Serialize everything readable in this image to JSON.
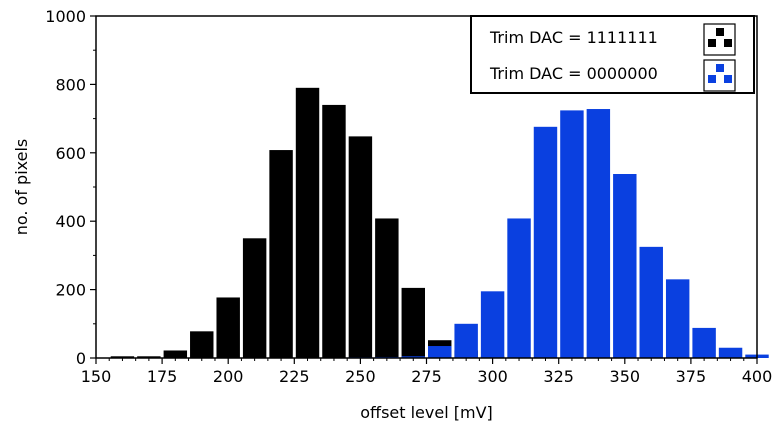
{
  "chart_data": {
    "type": "bar",
    "xlabel": "offset level [mV]",
    "ylabel": "no. of pixels",
    "xlim": [
      150,
      400
    ],
    "ylim": [
      0,
      1000
    ],
    "x_ticks": [
      "150",
      "175",
      "200",
      "225",
      "250",
      "275",
      "300",
      "325",
      "350",
      "375",
      "400"
    ],
    "y_ticks": [
      "0",
      "200",
      "400",
      "600",
      "800",
      "1000"
    ],
    "bin_width": 10,
    "legend_position": "top-right",
    "series": [
      {
        "name": "Trim DAC = 1111111",
        "color": "#000000",
        "bins": [
          160,
          170,
          180,
          190,
          200,
          210,
          220,
          230,
          240,
          250,
          260,
          270,
          280,
          290,
          300,
          310,
          320
        ],
        "values": [
          5,
          5,
          22,
          78,
          177,
          350,
          608,
          790,
          740,
          648,
          408,
          205,
          52,
          22,
          5,
          2,
          2
        ]
      },
      {
        "name": "Trim DAC = 0000000",
        "color": "#0a40e0",
        "bins": [
          250,
          260,
          270,
          280,
          290,
          300,
          310,
          320,
          330,
          340,
          350,
          360,
          370,
          380,
          390,
          400
        ],
        "values": [
          2,
          3,
          5,
          35,
          100,
          195,
          408,
          676,
          724,
          728,
          538,
          325,
          230,
          88,
          30,
          10
        ]
      }
    ]
  }
}
